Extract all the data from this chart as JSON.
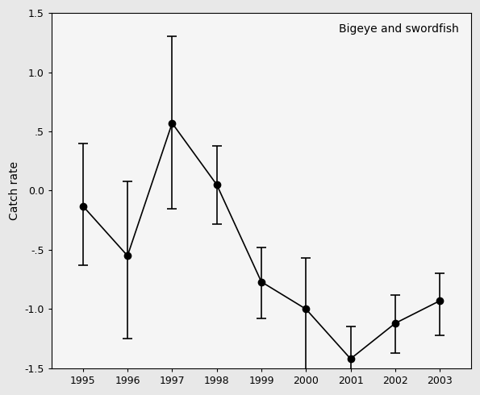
{
  "years": [
    1995,
    1996,
    1997,
    1998,
    1999,
    2000,
    2001,
    2002,
    2003
  ],
  "values": [
    -0.13,
    -0.55,
    0.57,
    0.05,
    -0.77,
    -1.0,
    -1.42,
    -1.12,
    -0.93
  ],
  "ci_lower": [
    -0.63,
    -1.25,
    -0.15,
    -0.28,
    -1.08,
    -1.6,
    -1.58,
    -1.37,
    -1.22
  ],
  "ci_upper": [
    0.4,
    0.08,
    1.3,
    0.38,
    -0.48,
    -0.57,
    -1.15,
    -0.88,
    -0.7
  ],
  "ylabel": "Catch rate",
  "annotation": "Bigeye and swordfish",
  "ylim": [
    -1.5,
    1.5
  ],
  "yticks": [
    -1.5,
    -1.0,
    -0.5,
    0.0,
    0.5,
    1.0,
    1.5
  ],
  "ytick_labels": [
    "-1.5",
    "-1.0",
    "-.5",
    "0.0",
    ".5",
    "1.0",
    "1.5"
  ],
  "line_color": "#000000",
  "marker_color": "#000000",
  "background_color": "#e8e8e8",
  "plot_bg_color": "#f5f5f5",
  "marker_size": 6,
  "line_width": 1.2,
  "capsize": 4,
  "cap_thickness": 1.2,
  "annotation_fontsize": 10,
  "ylabel_fontsize": 10,
  "tick_fontsize": 9,
  "xlim_left": 1994.3,
  "xlim_right": 2003.7
}
